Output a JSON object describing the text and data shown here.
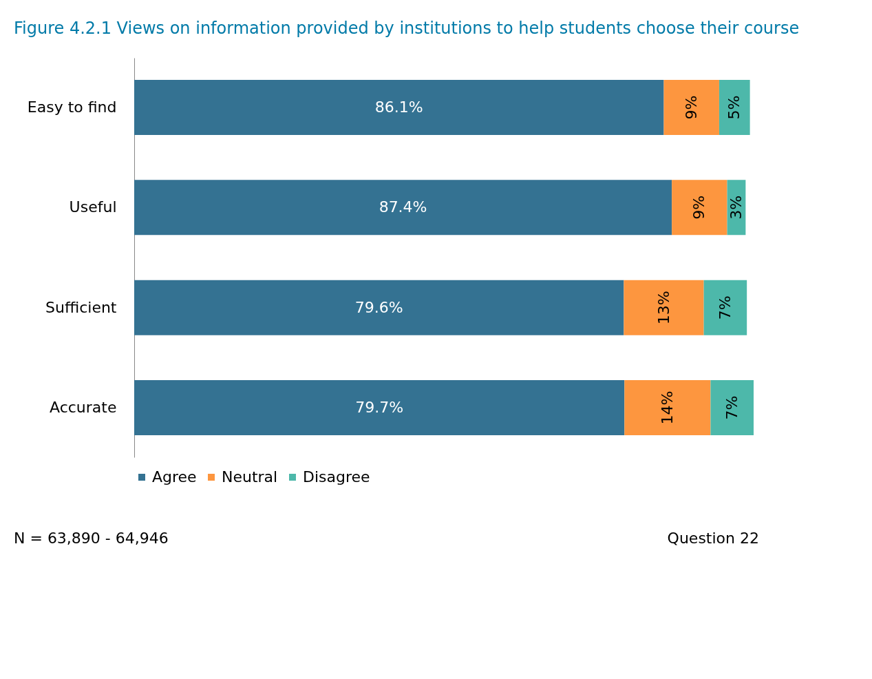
{
  "chart_data": {
    "type": "bar",
    "orientation": "horizontal",
    "stacked": true,
    "title": "Figure 4.2.1     Views on information provided by institutions to help students choose their course",
    "categories": [
      "Easy to find",
      "Useful",
      "Sufficient",
      "Accurate"
    ],
    "series": [
      {
        "name": "Agree",
        "color": "#347292",
        "values": [
          86.1,
          87.4,
          79.6,
          79.7
        ],
        "value_labels": [
          "86.1%",
          "87.4%",
          "79.6%",
          "79.7%"
        ]
      },
      {
        "name": "Neutral",
        "color": "#fd963f",
        "values": [
          9,
          9,
          13,
          14
        ],
        "value_labels": [
          "9%",
          "9%",
          "13%",
          "14%"
        ]
      },
      {
        "name": "Disagree",
        "color": "#4db8aa",
        "values": [
          5,
          3,
          7,
          7
        ],
        "value_labels": [
          "5%",
          "3%",
          "7%",
          "7%"
        ]
      }
    ],
    "legend": "bottom",
    "annotations": [
      "N = 63,890 - 64,946",
      "Question 22"
    ]
  }
}
